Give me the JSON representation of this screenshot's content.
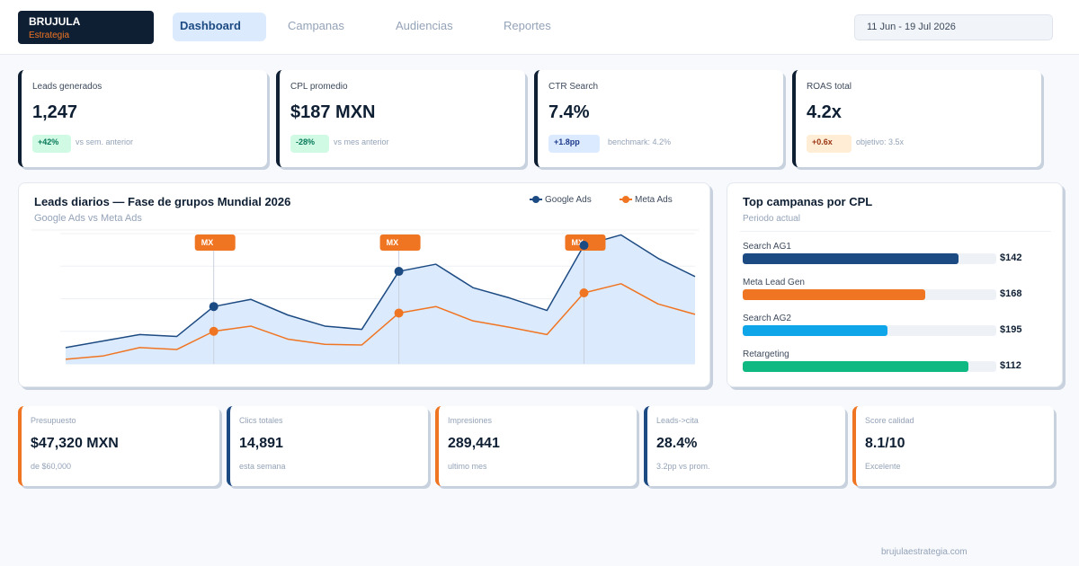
{
  "brand": {
    "name": "BRUJULA",
    "tagline": "Estrategia",
    "color": "#0f1f33",
    "accent": "#f07522"
  },
  "nav": {
    "tabs": [
      {
        "label": "Dashboard",
        "active": true
      },
      {
        "label": "Campanas",
        "active": false
      },
      {
        "label": "Audiencias",
        "active": false
      },
      {
        "label": "Reportes",
        "active": false
      }
    ]
  },
  "date_range": "11 Jun - 19 Jul 2026",
  "kpis": [
    {
      "label": "Leads generados",
      "value": "1,247",
      "badge": "+42%",
      "note": "vs sem. anterior",
      "badge_bg": "#d1fae5",
      "badge_fg": "#047857"
    },
    {
      "label": "CPL promedio",
      "value": "$187 MXN",
      "badge": "-28%",
      "note": "vs mes anterior",
      "badge_bg": "#d1fae5",
      "badge_fg": "#047857"
    },
    {
      "label": "CTR Search",
      "value": "7.4%",
      "badge": "+1.8pp",
      "note": "benchmark: 4.2%",
      "badge_bg": "#dbeafe",
      "badge_fg": "#1e3a8a"
    },
    {
      "label": "ROAS total",
      "value": "4.2x",
      "badge": "+0.6x",
      "note": "objetivo: 3.5x",
      "badge_bg": "#ffedd5",
      "badge_fg": "#9a3412"
    }
  ],
  "chart": {
    "title": "Leads diarios — Fase de grupos Mundial 2026",
    "subtitle": "Google Ads  vs  Meta Ads",
    "legend": [
      "Google Ads",
      "Meta Ads"
    ],
    "marker_label": "MX"
  },
  "chart_data": {
    "type": "area",
    "title": "Leads diarios — Fase de grupos Mundial 2026",
    "subtitle": "Google Ads  vs  Meta Ads",
    "x": [
      0,
      1,
      2,
      3,
      4,
      5,
      6,
      7,
      8,
      9,
      10,
      11,
      12,
      13,
      14,
      15,
      16,
      17
    ],
    "ylim": [
      0,
      200
    ],
    "grid": true,
    "legend_position": "top-right",
    "series": [
      {
        "name": "Google Ads",
        "color": "#1c4a82",
        "values": [
          25,
          35,
          45,
          42,
          88,
          99,
          75,
          58,
          53,
          142,
          153,
          117,
          101,
          82,
          182,
          198,
          162,
          134
        ]
      },
      {
        "name": "Meta Ads",
        "color": "#f07522",
        "values": [
          7,
          12,
          25,
          22,
          50,
          58,
          38,
          30,
          29,
          78,
          88,
          66,
          56,
          45,
          109,
          123,
          92,
          76
        ]
      }
    ],
    "annotations": [
      {
        "x": 4,
        "label": "MX"
      },
      {
        "x": 9,
        "label": "MX"
      },
      {
        "x": 14,
        "label": "MX"
      }
    ]
  },
  "top_campaigns": {
    "title": "Top campanas por CPL",
    "subtitle": "Periodo actual",
    "items": [
      {
        "name": "Search AG1",
        "value": "$142",
        "fill": 0.85,
        "color": "#1c4a82"
      },
      {
        "name": "Meta Lead Gen",
        "value": "$168",
        "fill": 0.72,
        "color": "#f07522"
      },
      {
        "name": "Search AG2",
        "value": "$195",
        "fill": 0.57,
        "color": "#0ea5e9"
      },
      {
        "name": "Retargeting",
        "value": "$112",
        "fill": 0.89,
        "color": "#10b981"
      }
    ]
  },
  "stats": [
    {
      "label": "Presupuesto",
      "value": "$47,320 MXN",
      "note": "de $60,000",
      "color": "#f07522"
    },
    {
      "label": "Clics totales",
      "value": "14,891",
      "note": "esta semana",
      "color": "#1c4a82"
    },
    {
      "label": "Impresiones",
      "value": "289,441",
      "note": "ultimo mes",
      "color": "#f07522"
    },
    {
      "label": "Leads->cita",
      "value": "28.4%",
      "note": "3.2pp vs prom.",
      "color": "#1c4a82"
    },
    {
      "label": "Score calidad",
      "value": "8.1/10",
      "note": "Excelente",
      "color": "#f07522"
    }
  ],
  "footer": "brujulaestrategia.com"
}
